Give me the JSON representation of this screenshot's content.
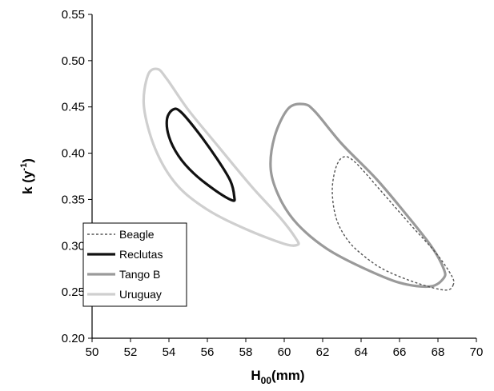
{
  "chart_data": {
    "type": "line",
    "title": "",
    "xlabel": {
      "main": "H",
      "sub": "00",
      "rest": "(mm)"
    },
    "ylabel": {
      "main": "k (y",
      "sup": "-1",
      "rest": ")"
    },
    "xlim": [
      50,
      70
    ],
    "ylim": [
      0.2,
      0.55
    ],
    "x_ticks": [
      50,
      52,
      54,
      56,
      58,
      60,
      62,
      64,
      66,
      68,
      70
    ],
    "y_ticks": [
      0.2,
      0.25,
      0.3,
      0.35,
      0.4,
      0.45,
      0.5,
      0.55
    ],
    "grid": false,
    "legend_position": "bottom-left",
    "series": [
      {
        "name": "Beagle",
        "color": "#555555",
        "dashed": true,
        "points": [
          [
            68.8,
            0.258
          ],
          [
            68.4,
            0.252
          ],
          [
            67.0,
            0.259
          ],
          [
            65.3,
            0.273
          ],
          [
            64.2,
            0.288
          ],
          [
            63.3,
            0.306
          ],
          [
            62.7,
            0.33
          ],
          [
            62.5,
            0.36
          ],
          [
            62.7,
            0.385
          ],
          [
            63.1,
            0.396
          ],
          [
            63.7,
            0.39
          ],
          [
            65.0,
            0.36
          ],
          [
            66.6,
            0.322
          ],
          [
            67.9,
            0.292
          ],
          [
            68.7,
            0.268
          ],
          [
            68.8,
            0.258
          ]
        ]
      },
      {
        "name": "Reclutas",
        "color": "#111111",
        "dashed": false,
        "points": [
          [
            57.3,
            0.349
          ],
          [
            56.4,
            0.36
          ],
          [
            55.3,
            0.378
          ],
          [
            54.5,
            0.397
          ],
          [
            54.0,
            0.418
          ],
          [
            53.9,
            0.437
          ],
          [
            54.2,
            0.447
          ],
          [
            54.6,
            0.445
          ],
          [
            55.5,
            0.423
          ],
          [
            56.5,
            0.394
          ],
          [
            57.2,
            0.37
          ],
          [
            57.4,
            0.353
          ],
          [
            57.3,
            0.349
          ]
        ]
      },
      {
        "name": "Tango B",
        "color": "#9a9a9a",
        "dashed": false,
        "points": [
          [
            68.3,
            0.265
          ],
          [
            67.6,
            0.256
          ],
          [
            66.0,
            0.26
          ],
          [
            64.0,
            0.277
          ],
          [
            62.2,
            0.297
          ],
          [
            60.7,
            0.323
          ],
          [
            59.8,
            0.35
          ],
          [
            59.3,
            0.382
          ],
          [
            59.5,
            0.418
          ],
          [
            60.2,
            0.448
          ],
          [
            61.0,
            0.453
          ],
          [
            61.6,
            0.445
          ],
          [
            63.0,
            0.41
          ],
          [
            64.8,
            0.372
          ],
          [
            66.5,
            0.33
          ],
          [
            67.7,
            0.298
          ],
          [
            68.3,
            0.275
          ],
          [
            68.3,
            0.265
          ]
        ]
      },
      {
        "name": "Uruguay",
        "color": "#cfcfcf",
        "dashed": false,
        "points": [
          [
            60.7,
            0.301
          ],
          [
            60.0,
            0.302
          ],
          [
            58.0,
            0.318
          ],
          [
            56.0,
            0.339
          ],
          [
            54.4,
            0.366
          ],
          [
            53.3,
            0.404
          ],
          [
            52.7,
            0.45
          ],
          [
            52.9,
            0.484
          ],
          [
            53.4,
            0.491
          ],
          [
            53.9,
            0.48
          ],
          [
            55.0,
            0.447
          ],
          [
            56.5,
            0.409
          ],
          [
            58.3,
            0.364
          ],
          [
            59.8,
            0.33
          ],
          [
            60.6,
            0.308
          ],
          [
            60.7,
            0.301
          ]
        ]
      }
    ]
  }
}
